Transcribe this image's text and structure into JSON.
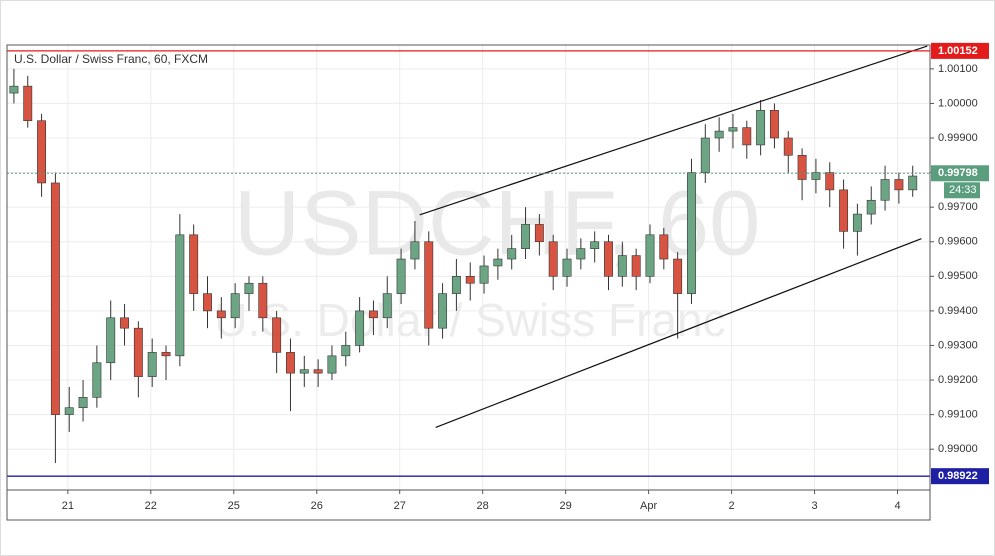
{
  "chart_data": {
    "type": "candlestick",
    "title": "U.S. Dollar / Swiss Franc, 60, FXCM",
    "watermark": "USDCHF, 60",
    "watermark_subtitle": "U.S. Dollar / Swiss Franc",
    "up_color": "#6ba583",
    "down_color": "#d75442",
    "grid": true,
    "x": [
      2,
      6,
      10,
      14,
      18,
      22,
      26,
      30,
      34,
      38,
      42,
      46,
      50,
      54,
      58,
      62,
      66,
      70,
      74,
      78,
      82,
      86,
      90,
      94,
      98,
      102,
      106,
      110,
      114,
      118,
      122,
      126,
      130,
      134,
      138,
      142,
      146,
      150,
      154,
      158,
      162,
      166,
      170,
      174,
      178,
      182,
      186,
      190,
      194,
      198,
      202,
      206,
      210,
      214,
      218,
      222,
      226,
      230,
      234,
      238,
      242,
      246,
      250,
      254,
      258,
      262
    ],
    "open": [
      1.0003,
      1.0005,
      0.9995,
      0.9977,
      0.991,
      0.9912,
      0.9915,
      0.9925,
      0.9938,
      0.9935,
      0.9921,
      0.9928,
      0.9927,
      0.9962,
      0.9945,
      0.994,
      0.9938,
      0.9945,
      0.9948,
      0.9938,
      0.9928,
      0.9922,
      0.9923,
      0.9922,
      0.9927,
      0.993,
      0.994,
      0.9938,
      0.9945,
      0.9955,
      0.996,
      0.9935,
      0.9945,
      0.995,
      0.9948,
      0.9953,
      0.9955,
      0.9958,
      0.9965,
      0.996,
      0.995,
      0.9955,
      0.9958,
      0.996,
      0.995,
      0.9956,
      0.995,
      0.9962,
      0.9955,
      0.9945,
      0.998,
      0.999,
      0.9992,
      0.9993,
      0.9988,
      0.9998,
      0.999,
      0.9985,
      0.9978,
      0.998,
      0.9975,
      0.9963,
      0.9968,
      0.9972,
      0.9978,
      0.9975
    ],
    "high": [
      1.001,
      1.0008,
      0.9997,
      0.998,
      0.9918,
      0.992,
      0.993,
      0.9943,
      0.9942,
      0.9937,
      0.9932,
      0.993,
      0.9968,
      0.9965,
      0.995,
      0.9944,
      0.9948,
      0.995,
      0.995,
      0.994,
      0.9932,
      0.9927,
      0.9926,
      0.993,
      0.9934,
      0.9944,
      0.9943,
      0.995,
      0.9958,
      0.9966,
      0.9963,
      0.9948,
      0.9955,
      0.9954,
      0.9956,
      0.9958,
      0.9962,
      0.997,
      0.9968,
      0.9962,
      0.9958,
      0.9961,
      0.9963,
      0.9962,
      0.996,
      0.9958,
      0.9965,
      0.9964,
      0.9957,
      0.9984,
      0.9994,
      0.9996,
      0.9997,
      0.9995,
      1.0001,
      1.0,
      0.9992,
      0.9987,
      0.9984,
      0.9983,
      0.9978,
      0.9971,
      0.9976,
      0.9982,
      0.998,
      0.9982
    ],
    "low": [
      1.0,
      0.9993,
      0.9973,
      0.9896,
      0.9905,
      0.9908,
      0.9912,
      0.992,
      0.993,
      0.9915,
      0.9918,
      0.992,
      0.9924,
      0.994,
      0.9935,
      0.9932,
      0.9935,
      0.994,
      0.9934,
      0.9922,
      0.9911,
      0.9918,
      0.9918,
      0.992,
      0.9924,
      0.9928,
      0.9933,
      0.9935,
      0.9942,
      0.9952,
      0.993,
      0.9932,
      0.994,
      0.9943,
      0.9945,
      0.9949,
      0.9952,
      0.9955,
      0.9956,
      0.9946,
      0.9947,
      0.9952,
      0.9954,
      0.9946,
      0.9947,
      0.9946,
      0.9948,
      0.9952,
      0.9932,
      0.9942,
      0.9977,
      0.9986,
      0.9987,
      0.9984,
      0.9985,
      0.9987,
      0.998,
      0.9972,
      0.9974,
      0.997,
      0.9958,
      0.9956,
      0.9965,
      0.9969,
      0.9971,
      0.9973
    ],
    "close": [
      1.0005,
      0.9995,
      0.9977,
      0.991,
      0.9912,
      0.9915,
      0.9925,
      0.9938,
      0.9935,
      0.9921,
      0.9928,
      0.9927,
      0.9962,
      0.9945,
      0.994,
      0.9938,
      0.9945,
      0.9948,
      0.9938,
      0.9928,
      0.9922,
      0.9923,
      0.9922,
      0.9927,
      0.993,
      0.994,
      0.9938,
      0.9945,
      0.9955,
      0.996,
      0.9935,
      0.9945,
      0.995,
      0.9948,
      0.9953,
      0.9955,
      0.9958,
      0.9965,
      0.996,
      0.995,
      0.9955,
      0.9958,
      0.996,
      0.995,
      0.9956,
      0.995,
      0.9962,
      0.9955,
      0.9945,
      0.998,
      0.999,
      0.9992,
      0.9993,
      0.9988,
      0.9998,
      0.999,
      0.9985,
      0.9978,
      0.998,
      0.9975,
      0.9963,
      0.9968,
      0.9972,
      0.9978,
      0.9975,
      0.9979
    ],
    "xlim": [
      0,
      267
    ],
    "xticks": [
      {
        "value": 17.6,
        "label": "21"
      },
      {
        "value": 41.6,
        "label": "22"
      },
      {
        "value": 65.6,
        "label": "25"
      },
      {
        "value": 89.6,
        "label": "26"
      },
      {
        "value": 113.6,
        "label": "27"
      },
      {
        "value": 137.6,
        "label": "28"
      },
      {
        "value": 161.6,
        "label": "29"
      },
      {
        "value": 185.6,
        "label": "Apr"
      },
      {
        "value": 209.6,
        "label": "2"
      },
      {
        "value": 233.6,
        "label": "3"
      },
      {
        "value": 257.6,
        "label": "4"
      }
    ],
    "ylim": [
      0.98882,
      1.00169
    ],
    "yticks": [
      {
        "value": 0.99,
        "label": "0.99000"
      },
      {
        "value": 0.991,
        "label": "0.99100"
      },
      {
        "value": 0.992,
        "label": "0.99200"
      },
      {
        "value": 0.993,
        "label": "0.99300"
      },
      {
        "value": 0.994,
        "label": "0.99400"
      },
      {
        "value": 0.995,
        "label": "0.99500"
      },
      {
        "value": 0.996,
        "label": "0.99600"
      },
      {
        "value": 0.997,
        "label": "0.99700"
      },
      {
        "value": 0.998,
        "label": "0.99800"
      },
      {
        "value": 0.999,
        "label": "0.99900"
      },
      {
        "value": 1.0,
        "label": "1.00000"
      },
      {
        "value": 1.001,
        "label": "1.00100"
      }
    ],
    "levels": [
      {
        "value": 1.00152,
        "label": "1.00152",
        "color": "#e31b1b",
        "dashed": false
      },
      {
        "value": 0.98922,
        "label": "0.98922",
        "color": "#1f1fa3",
        "dashed": false
      },
      {
        "value": 0.99798,
        "label": "0.99798",
        "color": "#5a9e7e",
        "dashed": true
      }
    ],
    "countdown": "24:33",
    "trendlines": [
      {
        "x": [
          119.4,
          266.2
        ],
        "y": [
          0.99678,
          1.00166
        ]
      },
      {
        "x": [
          124,
          264.5
        ],
        "y": [
          0.99063,
          0.99609
        ]
      }
    ]
  }
}
